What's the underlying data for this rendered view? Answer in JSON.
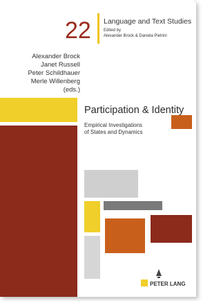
{
  "series": {
    "number": "22",
    "name": "Language and Text Studies",
    "edited_by": "Edited by",
    "series_editors": "Alexander Brock & Daniela Pietrini"
  },
  "editors": [
    "Alexander Brock",
    "Janet Russell",
    "Peter Schildhauer",
    "Merle Willenberg",
    "(eds.)"
  ],
  "title": "Participation & Identity",
  "subtitle": [
    "Empirical Investigations",
    "of States and Dynamics"
  ],
  "publisher": "PETER LANG"
}
